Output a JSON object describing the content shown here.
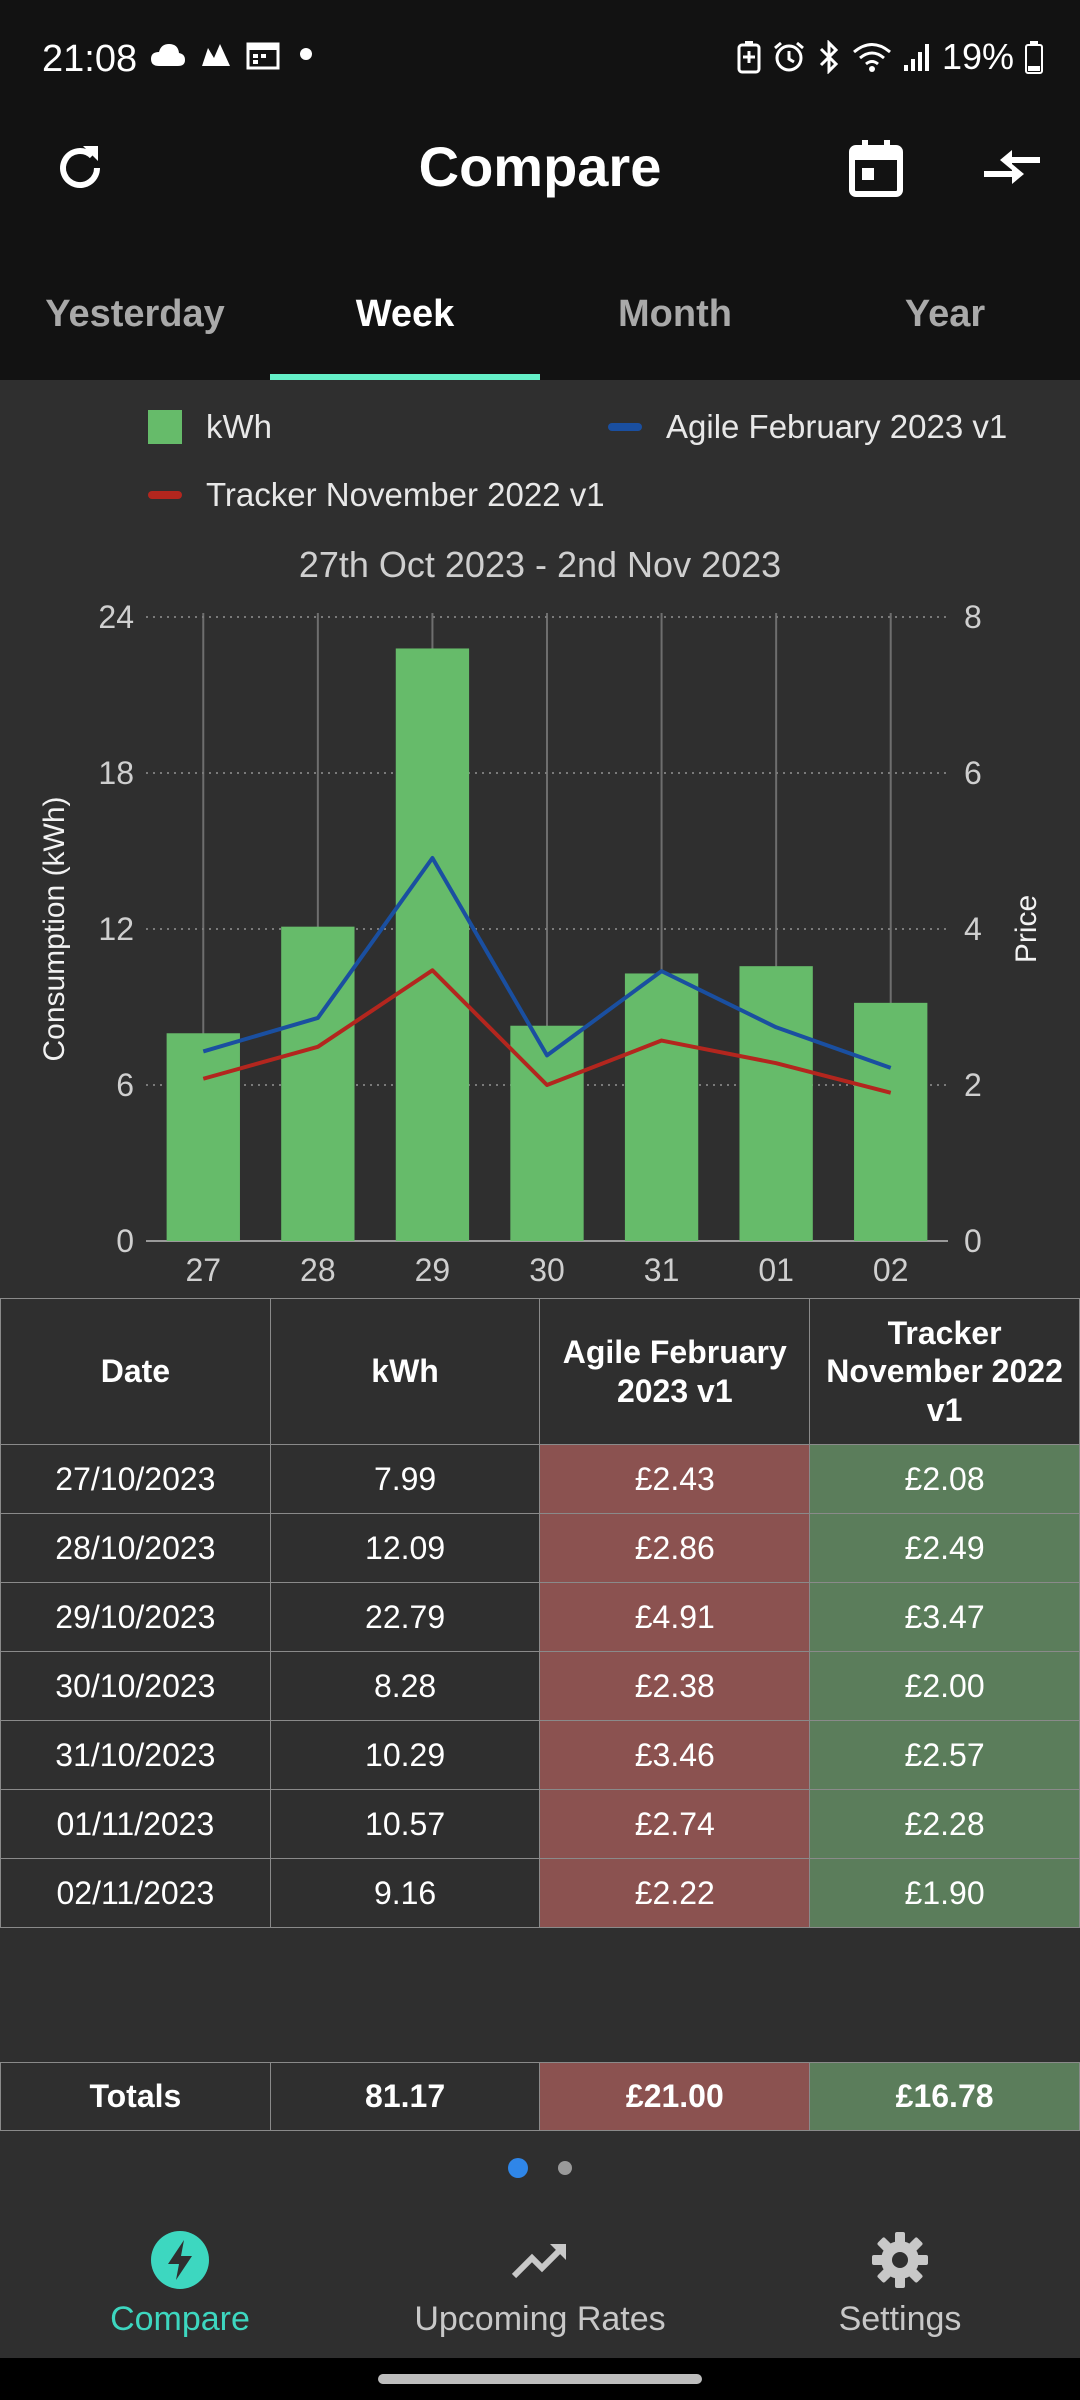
{
  "status": {
    "time": "21:08",
    "battery": "19%",
    "left_icons": [
      "cloud-icon",
      "cloud-icon",
      "calendar-icon",
      "dot-icon"
    ],
    "right_icons": [
      "battery-saver-icon",
      "alarm-icon",
      "bluetooth-icon",
      "wifi-icon",
      "signal-icon",
      "battery-icon"
    ]
  },
  "app_bar": {
    "title": "Compare"
  },
  "tabs": [
    {
      "label": "Yesterday",
      "active": false
    },
    {
      "label": "Week",
      "active": true
    },
    {
      "label": "Month",
      "active": false
    },
    {
      "label": "Year",
      "active": false
    }
  ],
  "legend": {
    "kwh": "kWh",
    "agile": "Agile February 2023 v1",
    "tracker": "Tracker November 2022 v1"
  },
  "colors": {
    "bar": "#66bb6a",
    "agile": "#1a4fa0",
    "tracker": "#b3261e",
    "accent": "#64f0c8",
    "nav_active": "#3dd7c0",
    "agile_cell": "#8b5250",
    "tracker_cell": "#5b7d5b"
  },
  "chart_data": {
    "type": "bar",
    "title": "27th Oct 2023 - 2nd Nov 2023",
    "ylabel": "Consumption (kWh)",
    "y2label": "Price",
    "categories": [
      "27",
      "28",
      "29",
      "30",
      "31",
      "01",
      "02"
    ],
    "ylim": [
      0,
      24
    ],
    "yticks": [
      "0",
      "6",
      "12",
      "18",
      "24"
    ],
    "y2lim": [
      0,
      8
    ],
    "y2ticks": [
      "0",
      "2",
      "4",
      "6",
      "8"
    ],
    "grid": true,
    "series": [
      {
        "name": "kWh",
        "type": "bar",
        "axis": "left",
        "values": [
          7.99,
          12.09,
          22.79,
          8.28,
          10.29,
          10.57,
          9.16
        ]
      },
      {
        "name": "Agile February 2023 v1",
        "type": "line",
        "axis": "right",
        "values": [
          2.43,
          2.86,
          4.91,
          2.38,
          3.46,
          2.74,
          2.22
        ]
      },
      {
        "name": "Tracker November 2022 v1",
        "type": "line",
        "axis": "right",
        "values": [
          2.08,
          2.49,
          3.47,
          2.0,
          2.57,
          2.28,
          1.9
        ]
      }
    ]
  },
  "table": {
    "headers": [
      "Date",
      "kWh",
      "Agile February 2023 v1",
      "Tracker November 2022 v1"
    ],
    "rows": [
      [
        "27/10/2023",
        "7.99",
        "£2.43",
        "£2.08"
      ],
      [
        "28/10/2023",
        "12.09",
        "£2.86",
        "£2.49"
      ],
      [
        "29/10/2023",
        "22.79",
        "£4.91",
        "£3.47"
      ],
      [
        "30/10/2023",
        "8.28",
        "£2.38",
        "£2.00"
      ],
      [
        "31/10/2023",
        "10.29",
        "£3.46",
        "£2.57"
      ],
      [
        "01/11/2023",
        "10.57",
        "£2.74",
        "£2.28"
      ],
      [
        "02/11/2023",
        "9.16",
        "£2.22",
        "£1.90"
      ]
    ],
    "totals": [
      "Totals",
      "81.17",
      "£21.00",
      "£16.78"
    ]
  },
  "pager": {
    "count": 2,
    "active": 0
  },
  "bottom_nav": [
    {
      "label": "Compare",
      "icon": "lightning-icon",
      "active": true
    },
    {
      "label": "Upcoming Rates",
      "icon": "trending-up-icon",
      "active": false
    },
    {
      "label": "Settings",
      "icon": "gear-icon",
      "active": false
    }
  ]
}
